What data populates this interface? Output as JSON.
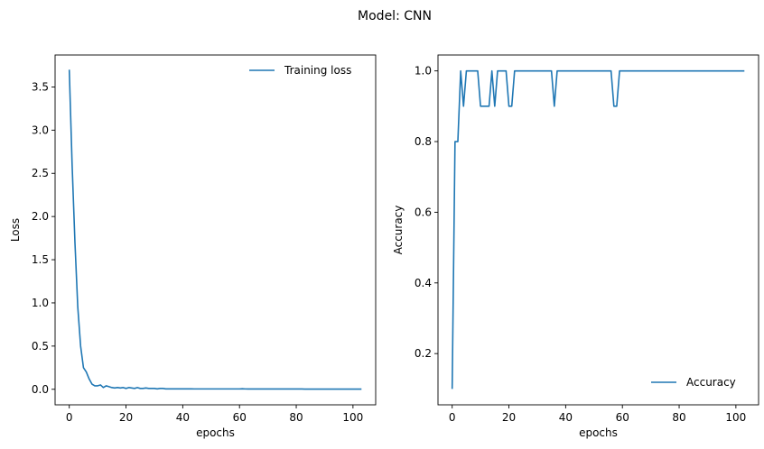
{
  "figure": {
    "suptitle": "Model: CNN"
  },
  "chart_data": [
    {
      "type": "line",
      "xlabel": "epochs",
      "ylabel": "Loss",
      "xlim": [
        -5,
        108
      ],
      "ylim": [
        -0.18,
        3.87
      ],
      "xticks": [
        0,
        20,
        40,
        60,
        80,
        100
      ],
      "yticks": [
        0.0,
        0.5,
        1.0,
        1.5,
        2.0,
        2.5,
        3.0,
        3.5
      ],
      "ytick_format": 1,
      "legend_position": "upper right",
      "color": "#1f77b4",
      "series": [
        {
          "name": "Training loss",
          "x": [
            0,
            1,
            2,
            3,
            4,
            5,
            6,
            7,
            8,
            9,
            10,
            11,
            12,
            13,
            14,
            15,
            16,
            17,
            18,
            19,
            20,
            21,
            22,
            23,
            24,
            25,
            26,
            27,
            28,
            29,
            30,
            31,
            32,
            33,
            34,
            35,
            36,
            37,
            38,
            39,
            40,
            41,
            42,
            43,
            44,
            45,
            46,
            47,
            48,
            49,
            50,
            51,
            52,
            53,
            54,
            55,
            56,
            57,
            58,
            59,
            60,
            61,
            62,
            63,
            64,
            65,
            66,
            67,
            68,
            69,
            70,
            71,
            72,
            73,
            74,
            75,
            76,
            77,
            78,
            79,
            80,
            81,
            82,
            83,
            84,
            85,
            86,
            87,
            88,
            89,
            90,
            91,
            92,
            93,
            94,
            95,
            96,
            97,
            98,
            99,
            100,
            101,
            102,
            103
          ],
          "values": [
            3.7,
            2.6,
            1.7,
            0.95,
            0.5,
            0.25,
            0.2,
            0.12,
            0.06,
            0.04,
            0.04,
            0.05,
            0.02,
            0.04,
            0.03,
            0.02,
            0.015,
            0.02,
            0.015,
            0.02,
            0.01,
            0.02,
            0.015,
            0.01,
            0.02,
            0.01,
            0.01,
            0.015,
            0.01,
            0.01,
            0.01,
            0.005,
            0.01,
            0.01,
            0.005,
            0.005,
            0.005,
            0.005,
            0.005,
            0.005,
            0.005,
            0.005,
            0.005,
            0.005,
            0.004,
            0.004,
            0.004,
            0.004,
            0.004,
            0.004,
            0.004,
            0.004,
            0.004,
            0.004,
            0.004,
            0.004,
            0.004,
            0.004,
            0.004,
            0.004,
            0.004,
            0.006,
            0.004,
            0.003,
            0.003,
            0.003,
            0.003,
            0.003,
            0.003,
            0.003,
            0.003,
            0.003,
            0.003,
            0.003,
            0.003,
            0.003,
            0.003,
            0.003,
            0.003,
            0.003,
            0.003,
            0.003,
            0.003,
            0.002,
            0.002,
            0.002,
            0.002,
            0.002,
            0.002,
            0.002,
            0.002,
            0.002,
            0.002,
            0.002,
            0.002,
            0.002,
            0.002,
            0.002,
            0.002,
            0.002,
            0.002,
            0.002,
            0.002,
            0.002
          ]
        }
      ]
    },
    {
      "type": "line",
      "xlabel": "epochs",
      "ylabel": "Accuracy",
      "xlim": [
        -5,
        108
      ],
      "ylim": [
        0.055,
        1.045
      ],
      "xticks": [
        0,
        20,
        40,
        60,
        80,
        100
      ],
      "yticks": [
        0.2,
        0.4,
        0.6,
        0.8,
        1.0
      ],
      "ytick_format": 1,
      "legend_position": "lower right",
      "color": "#1f77b4",
      "series": [
        {
          "name": "Accuracy",
          "x": [
            0,
            1,
            2,
            3,
            4,
            5,
            6,
            7,
            8,
            9,
            10,
            11,
            12,
            13,
            14,
            15,
            16,
            17,
            18,
            19,
            20,
            21,
            22,
            23,
            24,
            25,
            26,
            27,
            28,
            29,
            30,
            31,
            32,
            33,
            34,
            35,
            36,
            37,
            38,
            39,
            40,
            41,
            42,
            43,
            44,
            45,
            46,
            47,
            48,
            49,
            50,
            51,
            52,
            53,
            54,
            55,
            56,
            57,
            58,
            59,
            60,
            61,
            62,
            63,
            64,
            65,
            66,
            67,
            68,
            69,
            70,
            71,
            72,
            73,
            74,
            75,
            76,
            77,
            78,
            79,
            80,
            81,
            82,
            83,
            84,
            85,
            86,
            87,
            88,
            89,
            90,
            91,
            92,
            93,
            94,
            95,
            96,
            97,
            98,
            99,
            100,
            101,
            102,
            103
          ],
          "values": [
            0.1,
            0.8,
            0.8,
            1.0,
            0.9,
            1.0,
            1.0,
            1.0,
            1.0,
            1.0,
            0.9,
            0.9,
            0.9,
            0.9,
            1.0,
            0.9,
            1.0,
            1.0,
            1.0,
            1.0,
            0.9,
            0.9,
            1.0,
            1.0,
            1.0,
            1.0,
            1.0,
            1.0,
            1.0,
            1.0,
            1.0,
            1.0,
            1.0,
            1.0,
            1.0,
            1.0,
            0.9,
            1.0,
            1.0,
            1.0,
            1.0,
            1.0,
            1.0,
            1.0,
            1.0,
            1.0,
            1.0,
            1.0,
            1.0,
            1.0,
            1.0,
            1.0,
            1.0,
            1.0,
            1.0,
            1.0,
            1.0,
            0.9,
            0.9,
            1.0,
            1.0,
            1.0,
            1.0,
            1.0,
            1.0,
            1.0,
            1.0,
            1.0,
            1.0,
            1.0,
            1.0,
            1.0,
            1.0,
            1.0,
            1.0,
            1.0,
            1.0,
            1.0,
            1.0,
            1.0,
            1.0,
            1.0,
            1.0,
            1.0,
            1.0,
            1.0,
            1.0,
            1.0,
            1.0,
            1.0,
            1.0,
            1.0,
            1.0,
            1.0,
            1.0,
            1.0,
            1.0,
            1.0,
            1.0,
            1.0,
            1.0,
            1.0,
            1.0,
            1.0
          ]
        }
      ]
    }
  ]
}
